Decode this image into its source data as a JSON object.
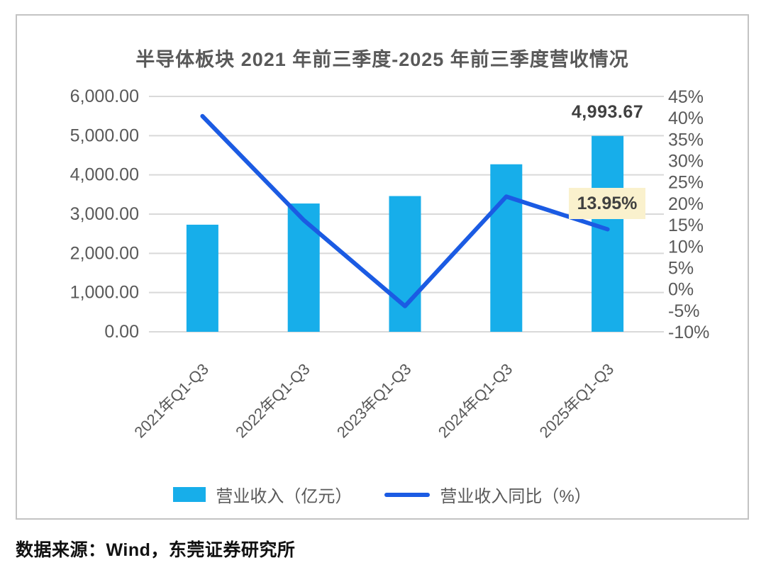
{
  "chart": {
    "title": "半导体板块 2021 年前三季度-2025 年前三季度营收情况",
    "source_note": "数据来源：Wind，东莞证券研究所"
  },
  "chart_data": {
    "type": "bar+line",
    "categories": [
      "2021年Q1-Q3",
      "2022年Q1-Q3",
      "2023年Q1-Q3",
      "2024年Q1-Q3",
      "2025年Q1-Q3"
    ],
    "series": [
      {
        "name": "营业收入（亿元）",
        "type": "bar",
        "axis": "left",
        "color": "#17AEEA",
        "values": [
          2730,
          3270,
          3460,
          4270,
          4993.67
        ]
      },
      {
        "name": "营业收入同比（%）",
        "type": "line",
        "axis": "right",
        "color": "#1B5BE3",
        "values": [
          40.4,
          16.1,
          -4.0,
          21.6,
          13.95
        ]
      }
    ],
    "left_axis": {
      "min": 0,
      "max": 6000,
      "step": 1000,
      "tick_labels": [
        "6,000.00",
        "5,000.00",
        "4,000.00",
        "3,000.00",
        "2,000.00",
        "1,000.00",
        "0.00"
      ]
    },
    "right_axis": {
      "min": -10,
      "max": 45,
      "step": 5,
      "tick_labels": [
        "45%",
        "40%",
        "35%",
        "30%",
        "25%",
        "20%",
        "15%",
        "10%",
        "5%",
        "0%",
        "-5%",
        "-10%"
      ]
    },
    "annotations": [
      {
        "target": "2025-bar",
        "text": "4,993.67",
        "background": "none"
      },
      {
        "target": "2025-line-point",
        "text": "13.95%",
        "background": "#FAF1CD"
      }
    ],
    "grid": true,
    "gridline_color": "#D9D9D9",
    "tick_label_color": "#595959",
    "legend_position": "bottom"
  }
}
